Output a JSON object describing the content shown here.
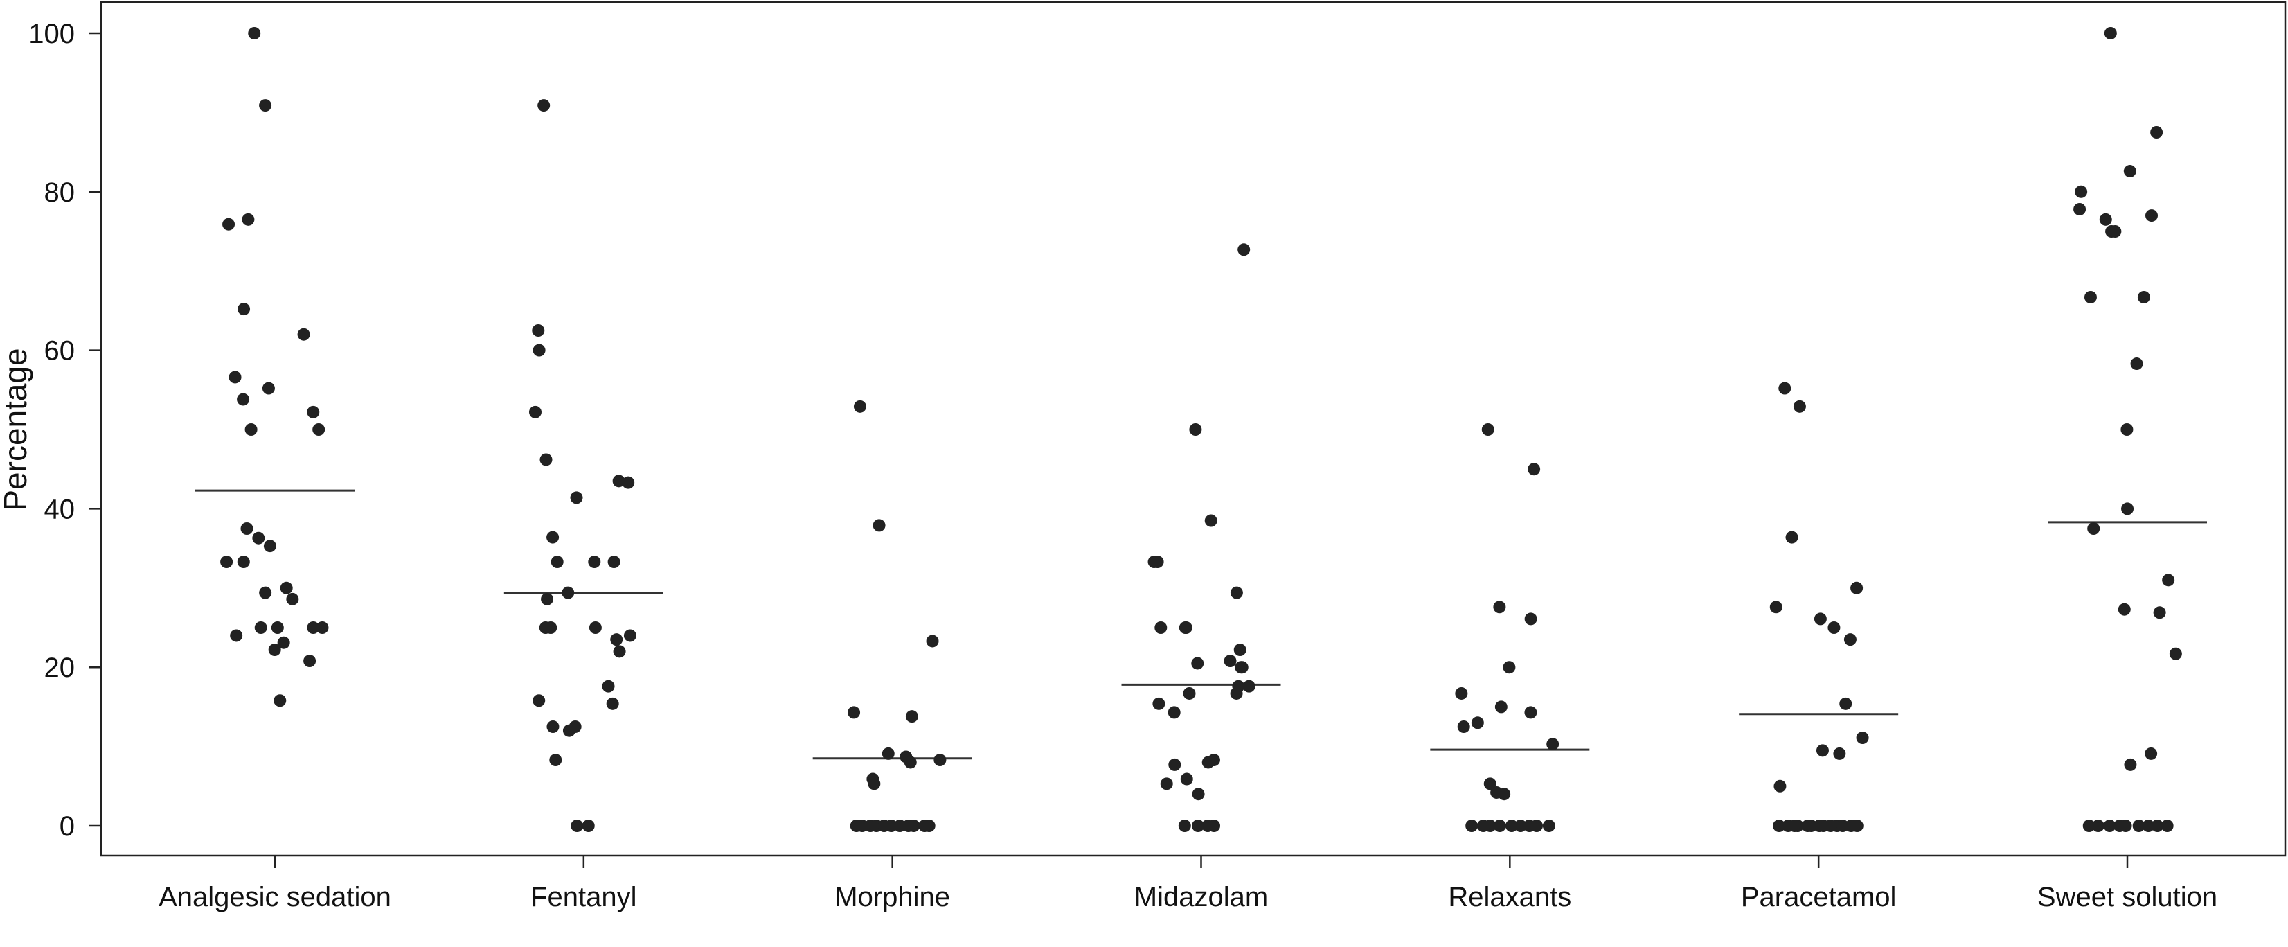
{
  "chart_data": {
    "type": "scatter",
    "subtype": "dot plot with mean lines",
    "title": "",
    "xlabel": "",
    "ylabel": "Percentage",
    "ylim": [
      0,
      100
    ],
    "yticks": [
      0,
      20,
      40,
      60,
      80,
      100
    ],
    "grid": false,
    "legend": "none",
    "colors": {
      "points": "#222222",
      "mean_line": "#333333",
      "axes": "#222222",
      "background": "#ffffff"
    },
    "categories": [
      "Analgesic sedation",
      "Fentanyl",
      "Morphine",
      "Midazolam",
      "Relaxants",
      "Paracetamol",
      "Sweet solution"
    ],
    "series": [
      {
        "category": "Analgesic sedation",
        "mean": 42.3,
        "points": [
          100,
          90.9,
          76.5,
          75.9,
          65.2,
          62,
          56.6,
          55.2,
          53.8,
          52.2,
          50,
          50,
          37.5,
          36.3,
          35.3,
          33.3,
          33.3,
          30,
          29.4,
          28.6,
          25,
          25,
          25,
          25,
          24,
          23.1,
          22.2,
          20.8,
          15.8
        ]
      },
      {
        "category": "Fentanyl",
        "mean": 29.4,
        "points": [
          90.9,
          62.5,
          60,
          52.2,
          46.2,
          43.5,
          43.3,
          41.4,
          36.4,
          33.3,
          33.3,
          33.3,
          29.4,
          28.6,
          25,
          25,
          25,
          24,
          23.5,
          22,
          17.6,
          15.8,
          15.4,
          12.5,
          12.5,
          12,
          8.3,
          0,
          0
        ]
      },
      {
        "category": "Morphine",
        "mean": 8.5,
        "points": [
          52.9,
          37.9,
          23.3,
          14.3,
          13.8,
          9.1,
          8.7,
          8.3,
          8,
          5.9,
          5.3,
          0,
          0,
          0,
          0,
          0,
          0,
          0,
          0,
          0,
          0,
          0
        ]
      },
      {
        "category": "Midazolam",
        "mean": 17.8,
        "points": [
          72.7,
          50,
          38.5,
          33.3,
          33.3,
          29.4,
          25,
          25,
          25,
          22.2,
          20.8,
          20.5,
          20,
          20,
          17.6,
          17.6,
          16.7,
          16.7,
          15.4,
          14.3,
          8.3,
          8,
          7.7,
          5.9,
          5.3,
          4,
          0,
          0,
          0,
          0
        ]
      },
      {
        "category": "Relaxants",
        "mean": 9.6,
        "points": [
          50,
          45,
          27.6,
          26.1,
          20,
          16.7,
          15,
          14.3,
          13,
          12.5,
          10.3,
          5.3,
          4.2,
          4,
          0,
          0,
          0,
          0,
          0,
          0,
          0,
          0,
          0
        ]
      },
      {
        "category": "Paracetamol",
        "mean": 14.1,
        "points": [
          55.2,
          52.9,
          36.4,
          30,
          27.6,
          26.1,
          25,
          23.5,
          15.4,
          11.1,
          9.5,
          9.1,
          5,
          0,
          0,
          0,
          0,
          0,
          0,
          0,
          0,
          0,
          0,
          0,
          0,
          0
        ]
      },
      {
        "category": "Sweet solution",
        "mean": 38.3,
        "points": [
          100,
          87.5,
          82.6,
          80,
          77.8,
          77,
          76.5,
          75,
          75,
          66.7,
          66.7,
          58.3,
          50,
          40,
          37.5,
          31,
          27.3,
          26.9,
          21.7,
          9.1,
          7.7,
          0,
          0,
          0,
          0,
          0,
          0,
          0,
          0,
          0
        ]
      }
    ]
  }
}
